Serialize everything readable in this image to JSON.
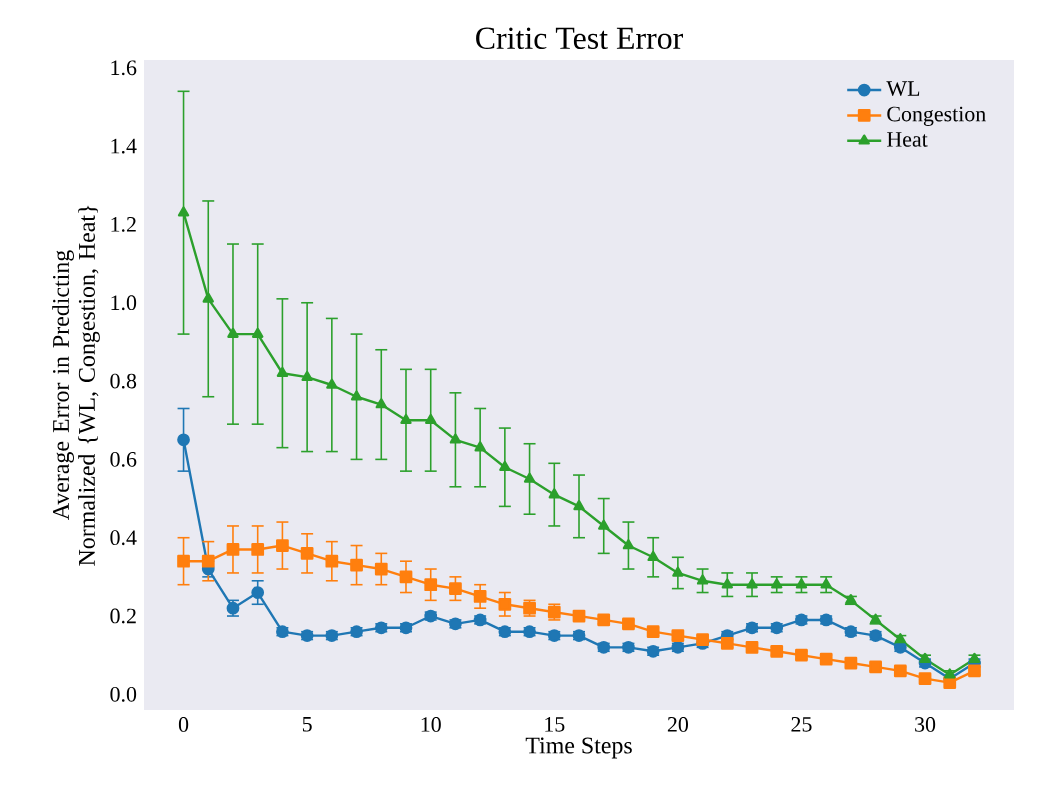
{
  "chart_data": {
    "type": "line",
    "title": "Critic Test Error",
    "xlabel": "Time Steps",
    "ylabel": "Average Error in Predicting Normalized {WL, Congestion, Heat}",
    "x": [
      0,
      1,
      2,
      3,
      4,
      5,
      6,
      7,
      8,
      9,
      10,
      11,
      12,
      13,
      14,
      15,
      16,
      17,
      18,
      19,
      20,
      21,
      22,
      23,
      24,
      25,
      26,
      27,
      28,
      29,
      30,
      31,
      32
    ],
    "series": [
      {
        "name": "WL",
        "color": "#1f77b4",
        "marker": "circle",
        "values": [
          0.65,
          0.32,
          0.22,
          0.26,
          0.16,
          0.15,
          0.15,
          0.16,
          0.17,
          0.17,
          0.2,
          0.18,
          0.19,
          0.16,
          0.16,
          0.15,
          0.15,
          0.12,
          0.12,
          0.11,
          0.12,
          0.13,
          0.15,
          0.17,
          0.17,
          0.19,
          0.19,
          0.16,
          0.15,
          0.12,
          0.08,
          0.04,
          0.08
        ],
        "errors": [
          0.08,
          0.02,
          0.02,
          0.03,
          0.01,
          0.01,
          0.01,
          0.01,
          0.01,
          0.01,
          0.01,
          0.01,
          0.01,
          0.01,
          0.01,
          0.01,
          0.01,
          0.01,
          0.01,
          0.01,
          0.01,
          0.01,
          0.01,
          0.01,
          0.01,
          0.01,
          0.01,
          0.01,
          0.01,
          0.01,
          0.01,
          null,
          0.01
        ]
      },
      {
        "name": "Congestion",
        "color": "#ff7f0e",
        "marker": "square",
        "values": [
          0.34,
          0.34,
          0.37,
          0.37,
          0.38,
          0.36,
          0.34,
          0.33,
          0.32,
          0.3,
          0.28,
          0.27,
          0.25,
          0.23,
          0.22,
          0.21,
          0.2,
          0.19,
          0.18,
          0.16,
          0.15,
          0.14,
          0.13,
          0.12,
          0.11,
          0.1,
          0.09,
          0.08,
          0.07,
          0.06,
          0.04,
          0.03,
          0.06
        ],
        "errors": [
          0.06,
          0.05,
          0.06,
          0.06,
          0.06,
          0.05,
          0.05,
          0.05,
          0.04,
          0.04,
          0.04,
          0.03,
          0.03,
          0.03,
          0.02,
          0.02,
          0.01,
          0.01,
          0.01,
          0.01,
          0.01,
          0.01,
          0.01,
          0.01,
          0.01,
          0.01,
          0.01,
          0.01,
          0.01,
          0.01,
          0.01,
          null,
          0.01
        ]
      },
      {
        "name": "Heat",
        "color": "#2ca02c",
        "marker": "triangle",
        "values": [
          1.23,
          1.01,
          0.92,
          0.92,
          0.82,
          0.81,
          0.79,
          0.76,
          0.74,
          0.7,
          0.7,
          0.65,
          0.63,
          0.58,
          0.55,
          0.51,
          0.48,
          0.43,
          0.38,
          0.35,
          0.31,
          0.29,
          0.28,
          0.28,
          0.28,
          0.28,
          0.28,
          0.24,
          0.19,
          0.14,
          0.09,
          0.05,
          0.09
        ],
        "errors": [
          0.31,
          0.25,
          0.23,
          0.23,
          0.19,
          0.19,
          0.17,
          0.16,
          0.14,
          0.13,
          0.13,
          0.12,
          0.1,
          0.1,
          0.09,
          0.08,
          0.08,
          0.07,
          0.06,
          0.05,
          0.04,
          0.03,
          0.03,
          0.03,
          0.02,
          0.02,
          0.02,
          0.01,
          0.01,
          0.01,
          0.01,
          0.01,
          0.01
        ]
      }
    ],
    "xlim": [
      -1.6,
      33.6
    ],
    "xticks": [
      0,
      5,
      10,
      15,
      20,
      25,
      30
    ],
    "ylim": [
      -0.04,
      1.62
    ],
    "yticks": [
      {
        "value": 0,
        "label": "0.0"
      },
      {
        "value": 0.2,
        "label": "0.2"
      },
      {
        "value": 0.4,
        "label": "0.4"
      },
      {
        "value": 0.6,
        "label": "0.6"
      },
      {
        "value": 0.8,
        "label": "0.8"
      },
      {
        "value": 1.0,
        "label": "1.0"
      },
      {
        "value": 1.2,
        "label": "1.2"
      },
      {
        "value": 1.4,
        "label": "1.4"
      },
      {
        "value": 1.6,
        "label": "1.6"
      }
    ],
    "legend": "top right"
  }
}
